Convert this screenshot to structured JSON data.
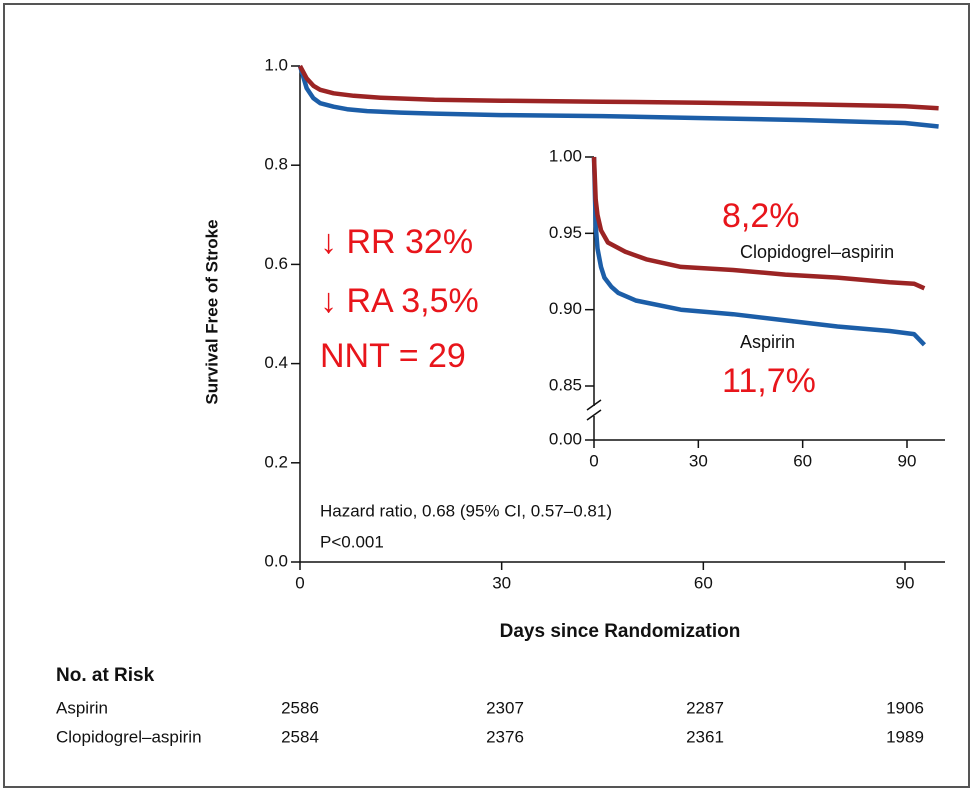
{
  "chart_data": [
    {
      "type": "line",
      "xlabel": "Days since Randomization",
      "ylabel": "Survival Free of Stroke",
      "xlim": [
        0,
        95
      ],
      "ylim": [
        0,
        1
      ],
      "xticks": [
        0,
        30,
        60,
        90
      ],
      "yticks": [
        {
          "value": 0,
          "label": "0.0"
        },
        {
          "value": 0.2,
          "label": "0.2"
        },
        {
          "value": 0.4,
          "label": "0.4"
        },
        {
          "value": 0.6,
          "label": "0.6"
        },
        {
          "value": 0.8,
          "label": "0.8"
        },
        {
          "value": 1,
          "label": "1.0"
        }
      ],
      "series": [
        {
          "color": "#1c5ea8",
          "x": [
            0,
            1,
            2,
            3,
            5,
            7,
            10,
            15,
            20,
            30,
            45,
            60,
            75,
            90,
            95
          ],
          "values": [
            1,
            0.955,
            0.935,
            0.925,
            0.918,
            0.913,
            0.909,
            0.906,
            0.904,
            0.901,
            0.899,
            0.895,
            0.891,
            0.885,
            0.878
          ]
        },
        {
          "color": "#9b2424",
          "x": [
            0,
            1,
            2,
            3,
            5,
            8,
            12,
            20,
            30,
            45,
            60,
            75,
            90,
            95
          ],
          "values": [
            1,
            0.975,
            0.96,
            0.952,
            0.945,
            0.94,
            0.936,
            0.932,
            0.93,
            0.928,
            0.926,
            0.923,
            0.919,
            0.915
          ]
        }
      ],
      "annotations": [
        "↓ RR 32%",
        "↓ RA 3,5%",
        "NNT = 29",
        "Hazard ratio, 0.68 (95% CI, 0.57–0.81)",
        "P<0.001"
      ]
    },
    {
      "type": "line",
      "xlim": [
        0,
        95
      ],
      "ylim": [
        0.85,
        1
      ],
      "axis_break": true,
      "xticks": [
        0,
        30,
        60,
        90
      ],
      "yticks": [
        {
          "value": 0,
          "label": "0.00"
        },
        0.85,
        {
          "value": 0.9,
          "label": "0.90"
        },
        0.95,
        {
          "value": 1,
          "label": "1.00"
        }
      ],
      "series": [
        {
          "name": "Aspirin",
          "color": "#1c5ea8",
          "x": [
            0,
            0.5,
            1,
            2,
            3,
            5,
            7,
            12,
            25,
            40,
            55,
            70,
            85,
            92,
            95
          ],
          "values": [
            1,
            0.955,
            0.94,
            0.928,
            0.921,
            0.915,
            0.911,
            0.906,
            0.9,
            0.897,
            0.893,
            0.889,
            0.886,
            0.884,
            0.877
          ]
        },
        {
          "name": "Clopidogrel–aspirin",
          "color": "#9b2424",
          "x": [
            0,
            0.5,
            1,
            2,
            4,
            9,
            15,
            25,
            40,
            55,
            70,
            85,
            92,
            95
          ],
          "values": [
            1,
            0.972,
            0.962,
            0.952,
            0.944,
            0.938,
            0.933,
            0.928,
            0.926,
            0.923,
            0.921,
            0.918,
            0.917,
            0.914
          ]
        }
      ],
      "annotations": [
        "8,2%",
        "11,7%"
      ]
    }
  ],
  "risk_table": {
    "title": "No. at Risk",
    "rows": [
      {
        "name": "Aspirin",
        "values": [
          2586,
          2307,
          2287,
          1906
        ]
      },
      {
        "name": "Clopidogrel–aspirin",
        "values": [
          2584,
          2376,
          2361,
          1989
        ]
      }
    ]
  }
}
